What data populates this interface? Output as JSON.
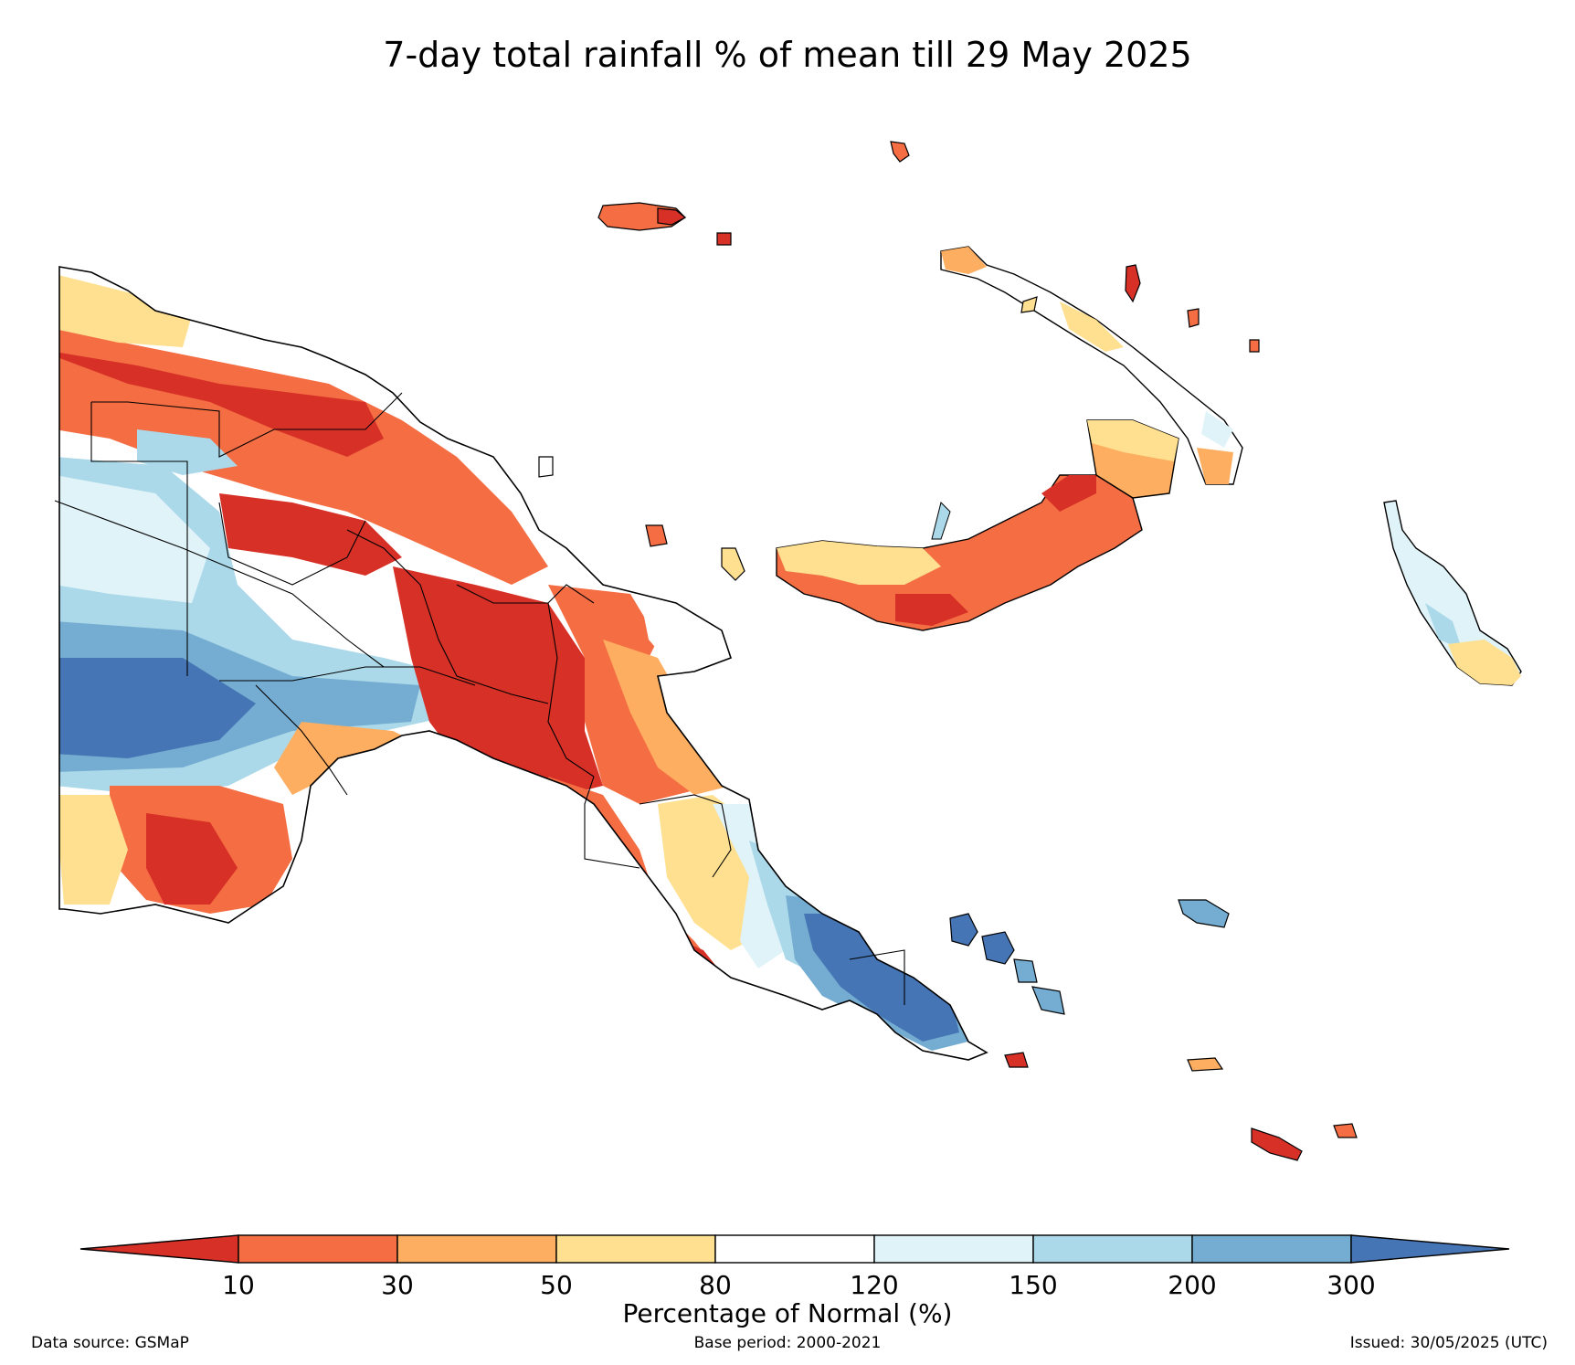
{
  "title": "7-day total rainfall % of mean till 29 May 2025",
  "legend": {
    "label": "Percentage of Normal (%)",
    "ticks": [
      "10",
      "30",
      "50",
      "80",
      "120",
      "150",
      "200",
      "300"
    ],
    "colors": {
      "lt10": "#d73027",
      "b10_30": "#f46d43",
      "b30_50": "#fdae61",
      "b50_80": "#fee090",
      "b80_120": "#ffffff",
      "b120_150": "#e0f3f8",
      "b150_200": "#abd9e9",
      "b200_300": "#74add1",
      "gt300": "#4575b4"
    }
  },
  "footer": {
    "source": "Data source: GSMaP",
    "base_period": "Base period: 2000-2021",
    "issued": "Issued: 30/05/2025 (UTC)"
  }
}
